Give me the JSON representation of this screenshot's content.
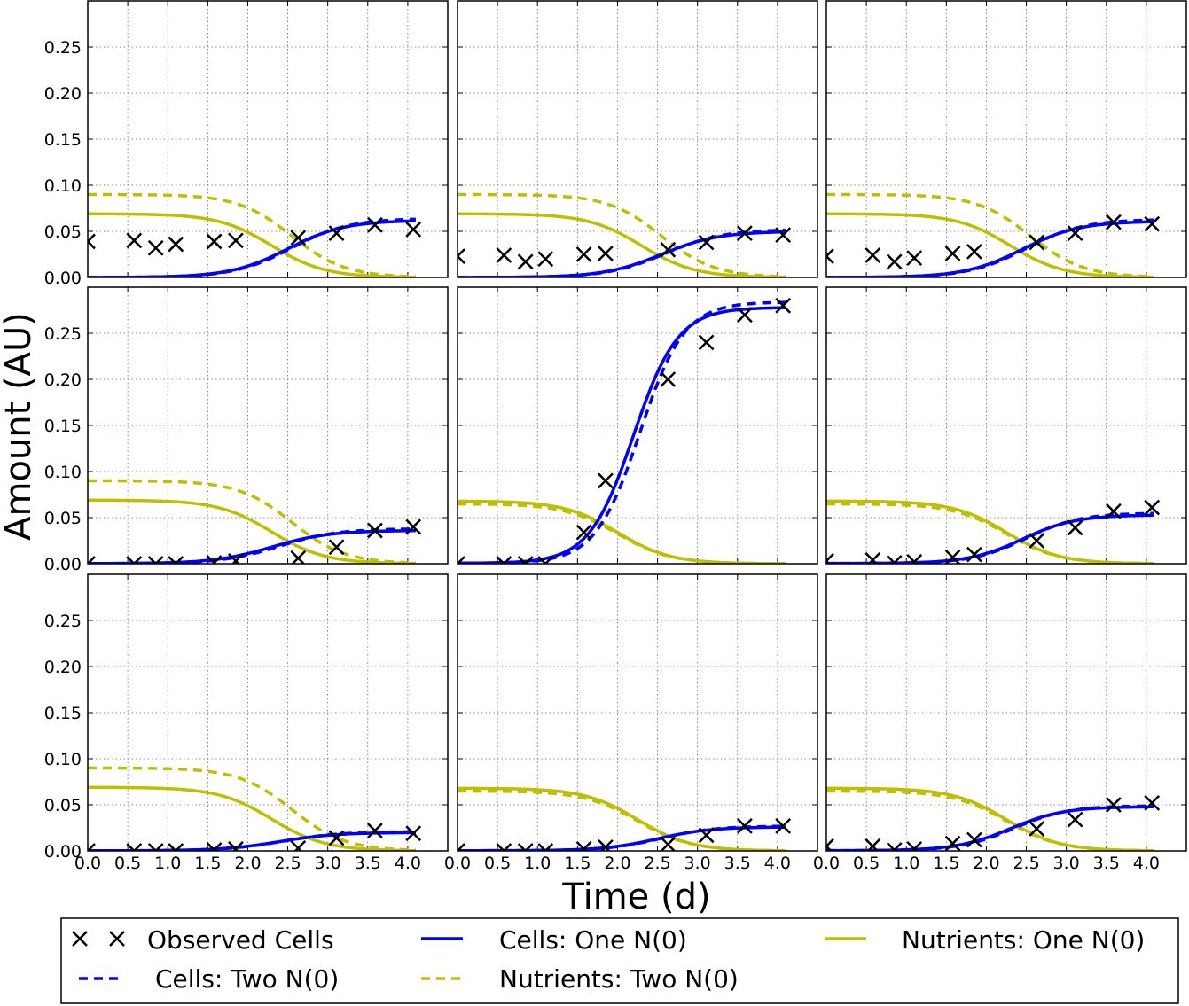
{
  "figure": {
    "ylabel": "Amount (AU)",
    "xlabel": "Time (d)"
  },
  "legend": {
    "placement": "bottom",
    "items": [
      {
        "label": "Observed Cells",
        "style": "marker-x",
        "color": "#000000"
      },
      {
        "label": "Cells: One N(0)",
        "style": "solid",
        "color": "#0000ff"
      },
      {
        "label": "Nutrients: One N(0)",
        "style": "solid",
        "color": "#bfbf00"
      },
      {
        "label": "Cells: Two N(0)",
        "style": "dashed",
        "color": "#0000ff"
      },
      {
        "label": "Nutrients: Two N(0)",
        "style": "dashed",
        "color": "#bfbf00"
      }
    ]
  },
  "chart_data": {
    "type": "line",
    "layout": "3x3 grid, shared axes",
    "grid": true,
    "xlim": [
      0,
      4.5
    ],
    "ylim": [
      0,
      0.3
    ],
    "xticks": [
      "0.0",
      "0.5",
      "1.0",
      "1.5",
      "2.0",
      "2.5",
      "3.0",
      "3.5",
      "4.0"
    ],
    "yticks": [
      "0.00",
      "0.05",
      "0.10",
      "0.15",
      "0.20",
      "0.25"
    ],
    "obs_times": [
      0.0,
      0.58,
      0.85,
      1.1,
      1.58,
      1.85,
      2.63,
      3.11,
      3.59,
      4.07
    ],
    "colors": {
      "cells": "#0000ff",
      "nutrients": "#bfbf00",
      "observed": "#000000"
    },
    "panels": [
      {
        "observed": [
          0.039,
          0.04,
          0.032,
          0.036,
          0.039,
          0.04,
          0.043,
          0.048,
          0.057,
          0.052
        ],
        "cells_one": {
          "c0": 5e-05,
          "K": 0.062,
          "t50": 2.5,
          "k": 2.8
        },
        "cells_two": {
          "c0": 5e-05,
          "K": 0.064,
          "t50": 2.55,
          "k": 2.8
        },
        "nutr_one": {
          "n0": 0.069,
          "t50": 2.3,
          "k": 3.0
        },
        "nutr_two": {
          "n0": 0.09,
          "t50": 2.55,
          "k": 3.0
        }
      },
      {
        "observed": [
          0.023,
          0.024,
          0.017,
          0.02,
          0.025,
          0.026,
          0.03,
          0.038,
          0.048,
          0.046
        ],
        "cells_one": {
          "c0": 5e-05,
          "K": 0.05,
          "t50": 2.55,
          "k": 2.8
        },
        "cells_two": {
          "c0": 5e-05,
          "K": 0.052,
          "t50": 2.6,
          "k": 2.8
        },
        "nutr_one": {
          "n0": 0.069,
          "t50": 2.3,
          "k": 3.0
        },
        "nutr_two": {
          "n0": 0.09,
          "t50": 2.55,
          "k": 3.0
        }
      },
      {
        "observed": [
          0.023,
          0.024,
          0.017,
          0.021,
          0.026,
          0.028,
          0.038,
          0.048,
          0.06,
          0.058
        ],
        "cells_one": {
          "c0": 5e-05,
          "K": 0.061,
          "t50": 2.45,
          "k": 2.8
        },
        "cells_two": {
          "c0": 5e-05,
          "K": 0.063,
          "t50": 2.5,
          "k": 2.8
        },
        "nutr_one": {
          "n0": 0.069,
          "t50": 2.3,
          "k": 3.0
        },
        "nutr_two": {
          "n0": 0.09,
          "t50": 2.55,
          "k": 3.0
        }
      },
      {
        "observed": [
          0.0,
          0.0,
          0.0,
          0.0,
          0.001,
          0.003,
          0.006,
          0.018,
          0.036,
          0.04
        ],
        "cells_one": {
          "c0": 0.0002,
          "K": 0.036,
          "t50": 2.3,
          "k": 2.8
        },
        "cells_two": {
          "c0": 0.0002,
          "K": 0.038,
          "t50": 2.4,
          "k": 2.8
        },
        "nutr_one": {
          "n0": 0.069,
          "t50": 2.3,
          "k": 3.0
        },
        "nutr_two": {
          "n0": 0.09,
          "t50": 2.55,
          "k": 3.0
        }
      },
      {
        "observed": [
          0.0,
          0.0,
          0.0,
          0.0,
          0.034,
          0.09,
          0.2,
          0.24,
          0.27,
          0.28
        ],
        "cells_one": {
          "c0": 0.0005,
          "K": 0.278,
          "t50": 2.2,
          "k": 3.6
        },
        "cells_two": {
          "c0": 0.0005,
          "K": 0.284,
          "t50": 2.28,
          "k": 3.6
        },
        "nutr_one": {
          "n0": 0.068,
          "t50": 2.0,
          "k": 3.0
        },
        "nutr_two": {
          "n0": 0.065,
          "t50": 2.0,
          "k": 3.0
        }
      },
      {
        "observed": [
          0.003,
          0.004,
          0.001,
          0.002,
          0.007,
          0.01,
          0.025,
          0.039,
          0.057,
          0.061
        ],
        "cells_one": {
          "c0": 0.0003,
          "K": 0.053,
          "t50": 2.45,
          "k": 3.0
        },
        "cells_two": {
          "c0": 0.0003,
          "K": 0.055,
          "t50": 2.5,
          "k": 3.0
        },
        "nutr_one": {
          "n0": 0.068,
          "t50": 2.25,
          "k": 3.0
        },
        "nutr_two": {
          "n0": 0.065,
          "t50": 2.25,
          "k": 3.0
        }
      },
      {
        "observed": [
          0.0,
          0.0,
          0.0,
          0.0,
          0.001,
          0.002,
          0.003,
          0.014,
          0.022,
          0.019
        ],
        "cells_one": {
          "c0": 0.0002,
          "K": 0.02,
          "t50": 2.4,
          "k": 2.8
        },
        "cells_two": {
          "c0": 0.0002,
          "K": 0.021,
          "t50": 2.45,
          "k": 2.8
        },
        "nutr_one": {
          "n0": 0.069,
          "t50": 2.3,
          "k": 3.0
        },
        "nutr_two": {
          "n0": 0.09,
          "t50": 2.55,
          "k": 3.0
        }
      },
      {
        "observed": [
          0.0,
          0.0,
          0.0,
          0.0,
          0.002,
          0.004,
          0.007,
          0.017,
          0.027,
          0.027
        ],
        "cells_one": {
          "c0": 0.0003,
          "K": 0.026,
          "t50": 2.5,
          "k": 3.0
        },
        "cells_two": {
          "c0": 0.0003,
          "K": 0.027,
          "t50": 2.55,
          "k": 3.0
        },
        "nutr_one": {
          "n0": 0.068,
          "t50": 2.25,
          "k": 3.0
        },
        "nutr_two": {
          "n0": 0.065,
          "t50": 2.25,
          "k": 3.0
        }
      },
      {
        "observed": [
          0.005,
          0.005,
          0.001,
          0.002,
          0.008,
          0.012,
          0.024,
          0.034,
          0.05,
          0.052
        ],
        "cells_one": {
          "c0": 0.0003,
          "K": 0.048,
          "t50": 2.3,
          "k": 3.0
        },
        "cells_two": {
          "c0": 0.0003,
          "K": 0.049,
          "t50": 2.35,
          "k": 3.0
        },
        "nutr_one": {
          "n0": 0.068,
          "t50": 2.25,
          "k": 3.0
        },
        "nutr_two": {
          "n0": 0.065,
          "t50": 2.25,
          "k": 3.0
        }
      }
    ]
  }
}
